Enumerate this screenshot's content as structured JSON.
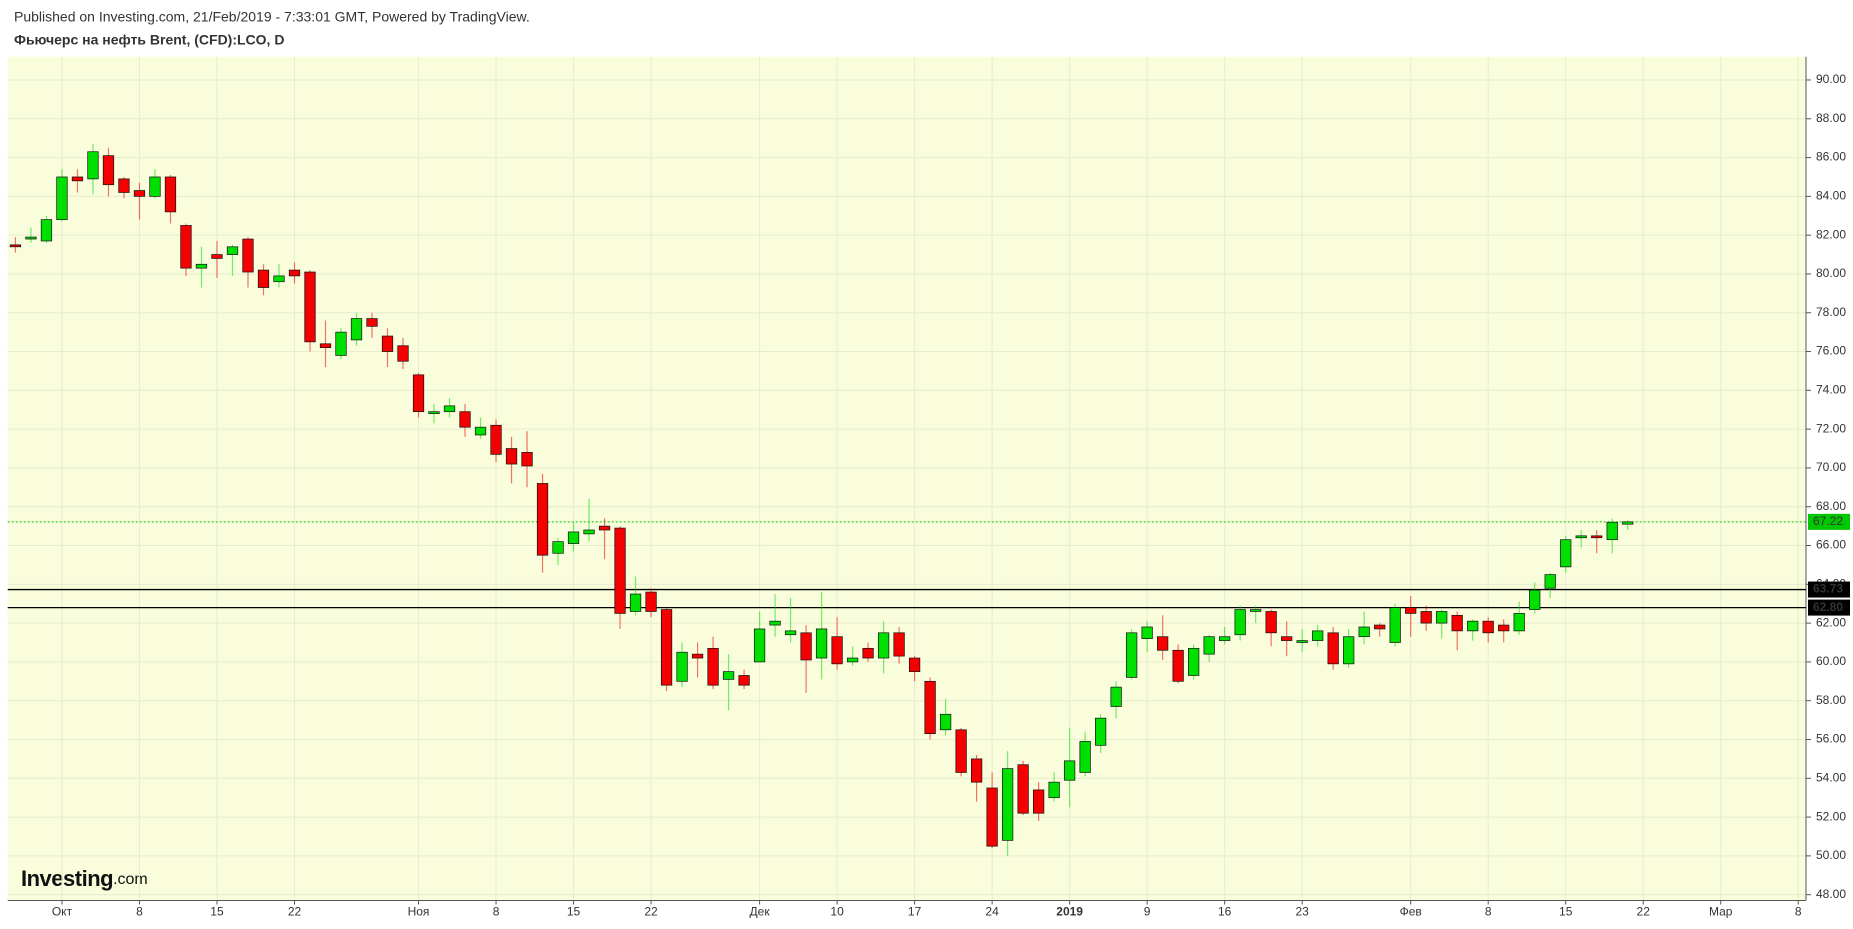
{
  "header": {
    "published": "Published on Investing.com, 21/Feb/2019 - 7:33:01 GMT, Powered by TradingView.",
    "title": "Фьючерс на нефть Brent, (CFD):LCO, D"
  },
  "chart_data": {
    "type": "candlestick",
    "categories": [
      null,
      null,
      null,
      "Окт",
      null,
      null,
      null,
      null,
      "8",
      null,
      null,
      null,
      null,
      "15",
      null,
      null,
      null,
      null,
      "22",
      null,
      null,
      null,
      null,
      null,
      null,
      null,
      "Ноя",
      null,
      null,
      null,
      null,
      "8",
      null,
      null,
      null,
      null,
      "15",
      null,
      null,
      null,
      null,
      "22",
      null,
      null,
      null,
      null,
      null,
      null,
      "Дек",
      null,
      null,
      null,
      null,
      "10",
      null,
      null,
      null,
      null,
      "17",
      null,
      null,
      null,
      null,
      "24",
      null,
      null,
      null,
      null,
      "2019",
      null,
      null,
      null,
      null,
      "9",
      null,
      null,
      null,
      null,
      "16",
      null,
      null,
      null,
      null,
      "23",
      null,
      null,
      null,
      null,
      null,
      null,
      "Фев",
      null,
      null,
      null,
      null,
      "8",
      null,
      null,
      null,
      null,
      "15",
      null,
      null,
      null,
      null,
      "22",
      null,
      null,
      null,
      null,
      "Мар",
      null,
      null,
      null,
      null,
      "8"
    ],
    "open": [
      81.5,
      81.8,
      81.7,
      82.8,
      85.0,
      84.9,
      86.1,
      84.9,
      84.3,
      84.0,
      85.0,
      82.5,
      80.3,
      81.0,
      81.0,
      81.8,
      80.2,
      79.6,
      80.2,
      80.1,
      76.4,
      75.8,
      76.6,
      77.7,
      76.8,
      76.3,
      74.8,
      72.8,
      72.9,
      72.9,
      71.7,
      72.2,
      71.0,
      70.8,
      69.2,
      65.6,
      66.1,
      66.6,
      67.0,
      66.9,
      62.6,
      63.6,
      62.7,
      59.0,
      60.4,
      60.7,
      59.1,
      59.3,
      60.0,
      61.9,
      61.4,
      61.5,
      60.2,
      61.3,
      60.0,
      60.7,
      60.2,
      61.5,
      60.2,
      59.0,
      56.5,
      56.5,
      55.0,
      53.5,
      50.8,
      54.7,
      53.4,
      53.0,
      53.9,
      54.3,
      55.7,
      57.7,
      59.2,
      61.2,
      61.3,
      60.6,
      59.3,
      60.4,
      61.1,
      61.4,
      62.6,
      62.6,
      61.3,
      61.0,
      61.1,
      61.5,
      59.9,
      61.3,
      61.9,
      61.0,
      62.8,
      62.6,
      62.0,
      62.4,
      61.6,
      62.1,
      61.9,
      61.6,
      62.7,
      63.8,
      64.9,
      66.4,
      66.5,
      66.3,
      67.1,
      null,
      null,
      null,
      null,
      null,
      null,
      null,
      null,
      null,
      null,
      null
    ],
    "high": [
      81.9,
      82.4,
      83.0,
      85.4,
      85.4,
      86.7,
      86.5,
      85.0,
      84.7,
      85.4,
      85.1,
      82.6,
      81.4,
      81.7,
      81.5,
      81.9,
      80.5,
      80.5,
      80.6,
      80.2,
      77.6,
      77.2,
      78.0,
      78.0,
      77.2,
      76.7,
      74.9,
      73.3,
      73.6,
      73.3,
      72.6,
      72.5,
      71.6,
      71.9,
      69.7,
      66.4,
      67.2,
      68.4,
      67.4,
      67.0,
      64.4,
      63.8,
      62.8,
      61.0,
      61.0,
      61.3,
      60.4,
      59.6,
      62.6,
      63.5,
      63.3,
      61.9,
      63.6,
      62.3,
      60.8,
      61.0,
      62.1,
      61.8,
      60.3,
      59.2,
      58.1,
      56.6,
      55.2,
      54.3,
      55.4,
      54.9,
      53.8,
      54.3,
      56.6,
      56.4,
      57.3,
      59.0,
      61.7,
      62.1,
      62.4,
      60.9,
      60.9,
      61.4,
      61.8,
      62.9,
      62.9,
      62.7,
      62.1,
      61.7,
      61.9,
      61.8,
      61.7,
      62.6,
      62.0,
      63.0,
      63.4,
      62.9,
      62.7,
      62.6,
      62.2,
      62.3,
      62.2,
      63.1,
      64.1,
      64.6,
      66.5,
      66.8,
      66.8,
      67.4,
      67.3,
      null,
      null,
      null,
      null,
      null,
      null,
      null,
      null,
      null,
      null,
      null
    ],
    "low": [
      81.1,
      81.6,
      81.6,
      82.7,
      84.2,
      84.1,
      84.0,
      83.9,
      82.8,
      83.9,
      82.6,
      79.9,
      79.3,
      79.8,
      79.9,
      79.3,
      78.9,
      79.3,
      79.5,
      76.0,
      75.2,
      75.6,
      76.3,
      76.7,
      75.2,
      75.1,
      72.6,
      72.3,
      72.6,
      71.6,
      71.5,
      70.3,
      69.2,
      69.0,
      64.6,
      65.0,
      65.7,
      66.2,
      65.3,
      61.7,
      62.4,
      62.3,
      58.5,
      58.7,
      59.2,
      58.6,
      57.5,
      58.6,
      60.0,
      61.3,
      61.0,
      58.4,
      59.1,
      59.6,
      59.8,
      60.0,
      59.4,
      59.9,
      59.0,
      56.0,
      56.2,
      54.1,
      52.8,
      50.4,
      50.0,
      52.1,
      51.8,
      52.8,
      52.5,
      54.1,
      55.3,
      57.1,
      59.1,
      60.5,
      60.1,
      58.9,
      59.1,
      60.0,
      60.9,
      61.1,
      62.0,
      60.8,
      60.3,
      60.5,
      60.8,
      59.6,
      59.7,
      60.9,
      61.3,
      60.8,
      61.3,
      61.6,
      61.2,
      60.6,
      61.1,
      61.0,
      61.0,
      61.4,
      62.5,
      63.3,
      64.6,
      65.9,
      65.6,
      65.6,
      66.8,
      null,
      null,
      null,
      null,
      null,
      null,
      null,
      null,
      null,
      null,
      null
    ],
    "close": [
      81.4,
      81.9,
      82.8,
      85.0,
      84.8,
      86.3,
      84.6,
      84.2,
      84.0,
      85.0,
      83.2,
      80.3,
      80.5,
      80.8,
      81.4,
      80.1,
      79.3,
      79.9,
      79.9,
      76.5,
      76.2,
      77.0,
      77.7,
      77.3,
      76.0,
      75.5,
      72.9,
      72.9,
      73.2,
      72.1,
      72.1,
      70.7,
      70.2,
      70.1,
      65.5,
      66.2,
      66.7,
      66.8,
      66.8,
      62.5,
      63.5,
      62.6,
      58.8,
      60.5,
      60.2,
      58.8,
      59.5,
      58.8,
      61.7,
      62.1,
      61.6,
      60.1,
      61.7,
      59.9,
      60.2,
      60.2,
      61.5,
      60.3,
      59.5,
      56.3,
      57.3,
      54.3,
      53.8,
      50.5,
      54.5,
      52.2,
      52.2,
      53.8,
      54.9,
      55.9,
      57.1,
      58.7,
      61.5,
      61.8,
      60.6,
      59.0,
      60.7,
      61.3,
      61.3,
      62.7,
      62.7,
      61.5,
      61.1,
      61.1,
      61.6,
      59.9,
      61.3,
      61.8,
      61.7,
      62.8,
      62.5,
      62.0,
      62.6,
      61.6,
      62.1,
      61.5,
      61.6,
      62.5,
      63.7,
      64.5,
      66.3,
      66.5,
      66.4,
      67.2,
      67.22,
      null,
      null,
      null,
      null,
      null,
      null,
      null,
      null,
      null,
      null,
      null
    ],
    "up_color": "#00e000",
    "down_color": "#f40000",
    "ylim": [
      47.7,
      91.2
    ],
    "yticks": [
      {
        "value": 48,
        "label": "48.00"
      },
      {
        "value": 50,
        "label": "50.00"
      },
      {
        "value": 52,
        "label": "52.00"
      },
      {
        "value": 54,
        "label": "54.00"
      },
      {
        "value": 56,
        "label": "56.00"
      },
      {
        "value": 58,
        "label": "58.00"
      },
      {
        "value": 60,
        "label": "60.00"
      },
      {
        "value": 62,
        "label": "62.00"
      },
      {
        "value": 64,
        "label": "64.00"
      },
      {
        "value": 66,
        "label": "66.00"
      },
      {
        "value": 68,
        "label": "68.00"
      },
      {
        "value": 70,
        "label": "70.00"
      },
      {
        "value": 72,
        "label": "72.00"
      },
      {
        "value": 74,
        "label": "74.00"
      },
      {
        "value": 76,
        "label": "76.00"
      },
      {
        "value": 78,
        "label": "78.00"
      },
      {
        "value": 80,
        "label": "80.00"
      },
      {
        "value": 82,
        "label": "82.00"
      },
      {
        "value": 84,
        "label": "84.00"
      },
      {
        "value": 86,
        "label": "86.00"
      },
      {
        "value": 88,
        "label": "88.00"
      },
      {
        "value": 90,
        "label": "90.00"
      }
    ],
    "grid": true,
    "levels": [
      {
        "value": 63.73,
        "label": "63.73",
        "color": "#000000"
      },
      {
        "value": 62.8,
        "label": "62.80",
        "color": "#000000"
      }
    ],
    "last_price": {
      "value": 67.22,
      "label": "67.22",
      "color": "#00c800"
    }
  },
  "logo": {
    "brand": "Investing",
    "suffix": ".com"
  }
}
